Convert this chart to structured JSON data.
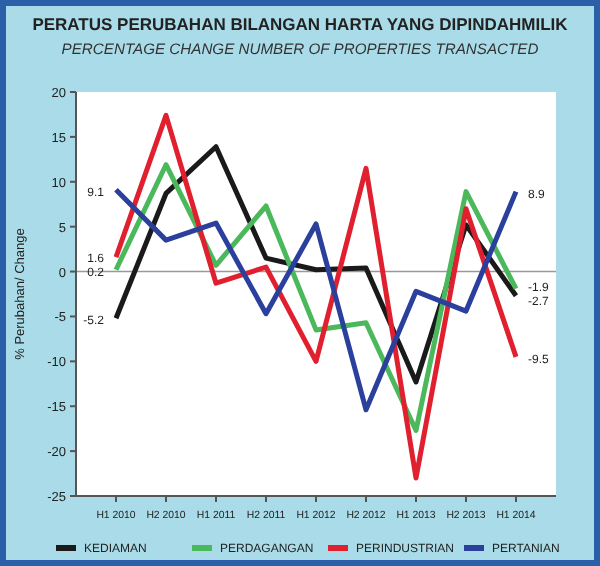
{
  "chart_data": {
    "type": "line",
    "title": "PERATUS PERUBAHAN BILANGAN HARTA YANG DIPINDAHMILIK",
    "subtitle": "PERCENTAGE CHANGE NUMBER OF PROPERTIES TRANSACTED",
    "ylabel": "% Perubahan/ Change",
    "categories": [
      "H1 2010",
      "H2 2010",
      "H1 2011",
      "H2 2011",
      "H1 2012",
      "H2 2012",
      "H1 2013",
      "H2 2013",
      "H1 2014"
    ],
    "series": [
      {
        "name": "KEDIAMAN",
        "color": "#1a1a1a",
        "values": [
          -5.2,
          8.7,
          13.9,
          1.5,
          0.2,
          0.4,
          -12.3,
          5.2,
          -2.7
        ],
        "value_labels": [
          "-5.2",
          null,
          null,
          null,
          null,
          null,
          null,
          null,
          "-2.7"
        ]
      },
      {
        "name": "PERDAGANGAN",
        "color": "#4cb85c",
        "values": [
          0.2,
          11.9,
          0.7,
          7.3,
          -6.5,
          -5.7,
          -17.7,
          8.9,
          -1.9
        ],
        "value_labels": [
          "0.2",
          null,
          null,
          null,
          null,
          null,
          null,
          null,
          "-1.9"
        ]
      },
      {
        "name": "PERINDUSTRIAN",
        "color": "#e0202e",
        "values": [
          1.6,
          17.4,
          -1.3,
          0.5,
          -10,
          11.5,
          -23,
          7,
          -9.5
        ],
        "value_labels": [
          "1.6",
          null,
          null,
          null,
          null,
          null,
          null,
          null,
          "-9.5"
        ]
      },
      {
        "name": "PERTANIAN",
        "color": "#2b3f9c",
        "values": [
          9.1,
          3.5,
          5.4,
          -4.7,
          5.3,
          -15.4,
          -2.2,
          -4.4,
          8.9
        ],
        "value_labels": [
          "9.1",
          null,
          null,
          null,
          null,
          null,
          null,
          null,
          "8.9"
        ]
      }
    ],
    "ylim": [
      -25,
      20
    ],
    "yticks": [
      -25,
      -20,
      -15,
      -10,
      -5,
      0,
      5,
      10,
      15,
      20
    ],
    "ref_lines": [
      {
        "axis": "y",
        "value": 0,
        "color": "#999999"
      }
    ],
    "grid": false,
    "legend": "bottom",
    "marker": "none",
    "line_style": "solid"
  }
}
